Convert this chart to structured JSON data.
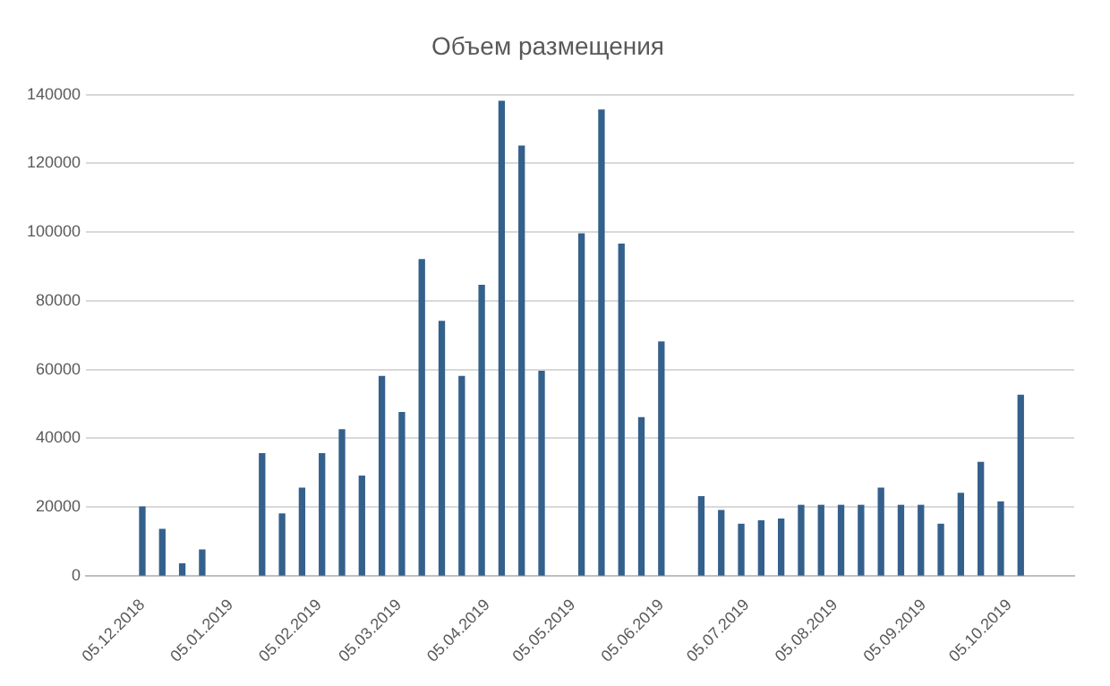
{
  "chart_data": {
    "type": "bar",
    "title": "Объем размещения",
    "series": [
      {
        "color": "#34608c",
        "x": [
          "2018-12-05",
          "2018-12-12",
          "2018-12-19",
          "2018-12-26",
          "2019-01-16",
          "2019-01-23",
          "2019-01-30",
          "2019-02-06",
          "2019-02-13",
          "2019-02-20",
          "2019-02-27",
          "2019-03-06",
          "2019-03-13",
          "2019-03-20",
          "2019-03-27",
          "2019-04-03",
          "2019-04-10",
          "2019-04-17",
          "2019-04-24",
          "2019-05-08",
          "2019-05-15",
          "2019-05-22",
          "2019-05-29",
          "2019-06-05",
          "2019-06-19",
          "2019-06-26",
          "2019-07-03",
          "2019-07-10",
          "2019-07-17",
          "2019-07-24",
          "2019-07-31",
          "2019-08-07",
          "2019-08-14",
          "2019-08-21",
          "2019-08-28",
          "2019-09-04",
          "2019-09-11",
          "2019-09-18",
          "2019-09-25",
          "2019-10-02",
          "2019-10-09"
        ],
        "values": [
          20000,
          13500,
          3500,
          7500,
          35500,
          18000,
          25500,
          35500,
          42500,
          29000,
          58000,
          47500,
          92000,
          74000,
          58000,
          84500,
          138000,
          125000,
          59500,
          99500,
          135500,
          96500,
          46000,
          68000,
          23000,
          19000,
          15000,
          16000,
          16500,
          20500,
          20500,
          20500,
          20500,
          25500,
          20500,
          20500,
          15000,
          24000,
          33000,
          21500,
          52500
        ]
      }
    ],
    "xlim": [
      "2018-12-01",
      "2019-10-12"
    ],
    "xticks": [
      {
        "value": "2018-12-05",
        "label": "05.12.2018"
      },
      {
        "value": "2019-01-05",
        "label": "05.01.2019"
      },
      {
        "value": "2019-02-05",
        "label": "05.02.2019"
      },
      {
        "value": "2019-03-05",
        "label": "05.03.2019"
      },
      {
        "value": "2019-04-05",
        "label": "05.04.2019"
      },
      {
        "value": "2019-05-05",
        "label": "05.05.2019"
      },
      {
        "value": "2019-06-05",
        "label": "05.06.2019"
      },
      {
        "value": "2019-07-05",
        "label": "05.07.2019"
      },
      {
        "value": "2019-08-05",
        "label": "05.08.2019"
      },
      {
        "value": "2019-09-05",
        "label": "05.09.2019"
      },
      {
        "value": "2019-10-05",
        "label": "05.10.2019"
      }
    ],
    "ylim": [
      0,
      140000
    ],
    "yticks": [
      0,
      20000,
      40000,
      60000,
      80000,
      100000,
      120000,
      140000
    ],
    "grid": "y",
    "legend": false
  }
}
